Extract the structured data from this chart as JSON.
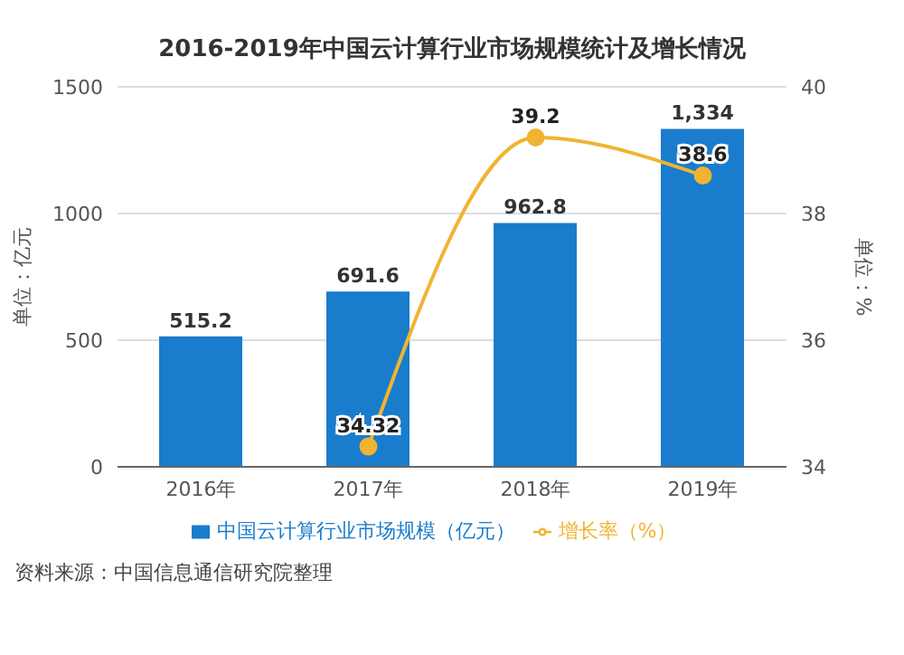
{
  "chart_data": {
    "type": "bar",
    "title": "2016-2019年中国云计算行业市场规模统计及增长情况",
    "categories": [
      "2016年",
      "2017年",
      "2018年",
      "2019年"
    ],
    "series": [
      {
        "name": "中国云计算行业市场规模（亿元）",
        "color": "#1a7ccc",
        "values": [
          515.2,
          691.6,
          962.8,
          1334
        ],
        "value_labels": [
          "515.2",
          "691.6",
          "962.8",
          "1,334"
        ]
      },
      {
        "name": "增长率（%）",
        "type": "line",
        "axis": "y2",
        "color": "#f0b432",
        "values": [
          null,
          34.32,
          39.2,
          38.6
        ],
        "value_labels": [
          null,
          "34.32",
          "39.2",
          "38.6"
        ]
      }
    ],
    "ylabel": "单位：亿元",
    "y2label": "单位：%",
    "ylim": [
      0,
      1500
    ],
    "yticks": [
      0,
      500,
      1000,
      1500
    ],
    "y2lim": [
      34,
      40
    ],
    "y2ticks": [
      34,
      36,
      38,
      40
    ],
    "grid": "y",
    "legend": "bottom",
    "marker": "circle",
    "annotations": [
      "资料来源：中国信息通信研究院整理"
    ]
  }
}
